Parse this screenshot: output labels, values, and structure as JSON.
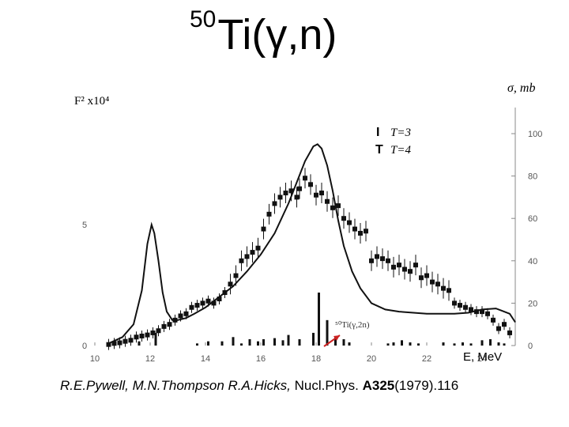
{
  "slide": {
    "title_sup": "50",
    "title_main": "Ti(γ,n)"
  },
  "citation": {
    "authors": "R.E.Pywell, M.N.Thompson R.A.Hicks,",
    "journal": " Nucl.Phys. ",
    "volume": "A325",
    "year_pages": "(1979).116"
  },
  "chart_data": {
    "type": "line",
    "xlabel": "E, MeV",
    "ylabel_right": "σ, mb",
    "ylabel_left": "F² x10⁴",
    "xlim": [
      10,
      25.2
    ],
    "ylim_right": [
      0,
      105
    ],
    "x_ticks": [
      "10",
      "12",
      "14",
      "16",
      "18",
      "20",
      "22",
      "24"
    ],
    "y_ticks_right": [
      "0",
      "20",
      "40",
      "60",
      "80",
      "100"
    ],
    "y_ticks_left": [
      "0",
      "5"
    ],
    "y_ticks_left_values": [
      0,
      57
    ],
    "legend": [
      {
        "symbol": "I",
        "label": "T=3"
      },
      {
        "symbol": "T",
        "label": "T=4"
      }
    ],
    "annotation": "⁵⁰Ti(γ,2n)",
    "colors": {
      "axis": "#555555",
      "data": "#111111",
      "arrow": "#cc2222"
    },
    "series": [
      {
        "name": "",
        "style": "points",
        "x": [
          10.5,
          10.7,
          10.9,
          11.1,
          11.3,
          11.5,
          11.7,
          11.9,
          12.1,
          12.3,
          12.5,
          12.7,
          12.9,
          13.1,
          13.3,
          13.5,
          13.7,
          13.9,
          14.1,
          14.3,
          14.5,
          14.7,
          14.9,
          15.1,
          15.3,
          15.5,
          15.7,
          15.9,
          16.1,
          16.3,
          16.5,
          16.7,
          16.9,
          17.1,
          17.3,
          17.4,
          17.6,
          17.8,
          18.0,
          18.2,
          18.4,
          18.6,
          18.8,
          19.0,
          19.2,
          19.4,
          19.6,
          19.8,
          20.0,
          20.2,
          20.4,
          20.6,
          20.8,
          21.0,
          21.2,
          21.4,
          21.6,
          21.8,
          22.0,
          22.2,
          22.4,
          22.6,
          22.8,
          23.0,
          23.2,
          23.4,
          23.6,
          23.8,
          24.0,
          24.2,
          24.4,
          24.6,
          24.8,
          25.0
        ],
        "y": [
          0.5,
          1.0,
          1.3,
          2.0,
          2.5,
          4.0,
          4.5,
          5.0,
          6.0,
          7.0,
          9.0,
          10.0,
          12.0,
          14.0,
          15.0,
          18.0,
          19.0,
          20.0,
          21.0,
          20.0,
          22.0,
          25.0,
          29.0,
          33.0,
          40.0,
          42.0,
          44.0,
          46.0,
          55.0,
          62.0,
          67.0,
          70.0,
          72.0,
          73.0,
          70.0,
          74.0,
          79.0,
          76.0,
          71.0,
          72.0,
          68.0,
          65.0,
          66.0,
          60.0,
          58.0,
          55.0,
          53.0,
          54.0,
          40.0,
          42.0,
          41.0,
          40.0,
          37.0,
          38.0,
          36.0,
          35.0,
          38.0,
          32.0,
          33.0,
          30.0,
          29.0,
          27.0,
          26.0,
          20.0,
          19.0,
          18.0,
          17.0,
          16.0,
          16.0,
          15.0,
          12.0,
          8.0,
          10.0,
          6.0
        ]
      },
      {
        "name": "",
        "style": "curve",
        "x": [
          10.5,
          11.0,
          11.4,
          11.7,
          11.9,
          12.05,
          12.15,
          12.3,
          12.45,
          12.6,
          12.8,
          13.0,
          13.3,
          13.6,
          14.0,
          14.5,
          15.0,
          15.5,
          16.0,
          16.5,
          17.0,
          17.3,
          17.6,
          17.9,
          18.05,
          18.2,
          18.4,
          18.6,
          18.8,
          19.0,
          19.3,
          19.6,
          20.0,
          20.5,
          21.0,
          22.0,
          23.0,
          23.5,
          24.0,
          24.5,
          25.0,
          25.2
        ],
        "y": [
          1.0,
          4.0,
          10.0,
          26.0,
          48.0,
          57.0,
          53.0,
          40.0,
          25.0,
          16.0,
          12.0,
          12.0,
          13.0,
          15.0,
          18.0,
          23.0,
          28.0,
          35.0,
          43.0,
          53.0,
          67.0,
          77.0,
          87.0,
          94.0,
          95.0,
          93.0,
          85.0,
          73.0,
          59.0,
          47.0,
          35.0,
          27.0,
          20.0,
          17.0,
          16.0,
          15.0,
          15.0,
          15.5,
          17.0,
          17.5,
          15.0,
          11.0
        ]
      }
    ],
    "bars": {
      "x": [
        11.6,
        12.2,
        13.7,
        14.1,
        14.6,
        15.0,
        15.3,
        15.6,
        15.9,
        16.1,
        16.5,
        16.8,
        17.0,
        17.4,
        17.9,
        18.1,
        18.4,
        18.7,
        19.0,
        19.2,
        20.6,
        20.8,
        21.1,
        21.4,
        21.7,
        22.6,
        23.0,
        23.3,
        23.6,
        24.0,
        24.3,
        24.6,
        24.8
      ],
      "h": [
        2.0,
        6.0,
        1.0,
        2.0,
        2.0,
        4.0,
        1.0,
        3.0,
        2.0,
        3.0,
        3.5,
        2.5,
        5.0,
        3.0,
        6.0,
        25.0,
        12.0,
        4.0,
        3.0,
        1.5,
        1.0,
        1.5,
        2.5,
        1.5,
        1.0,
        1.5,
        1.0,
        1.5,
        1.0,
        2.5,
        3.0,
        1.5,
        1.0
      ]
    }
  }
}
